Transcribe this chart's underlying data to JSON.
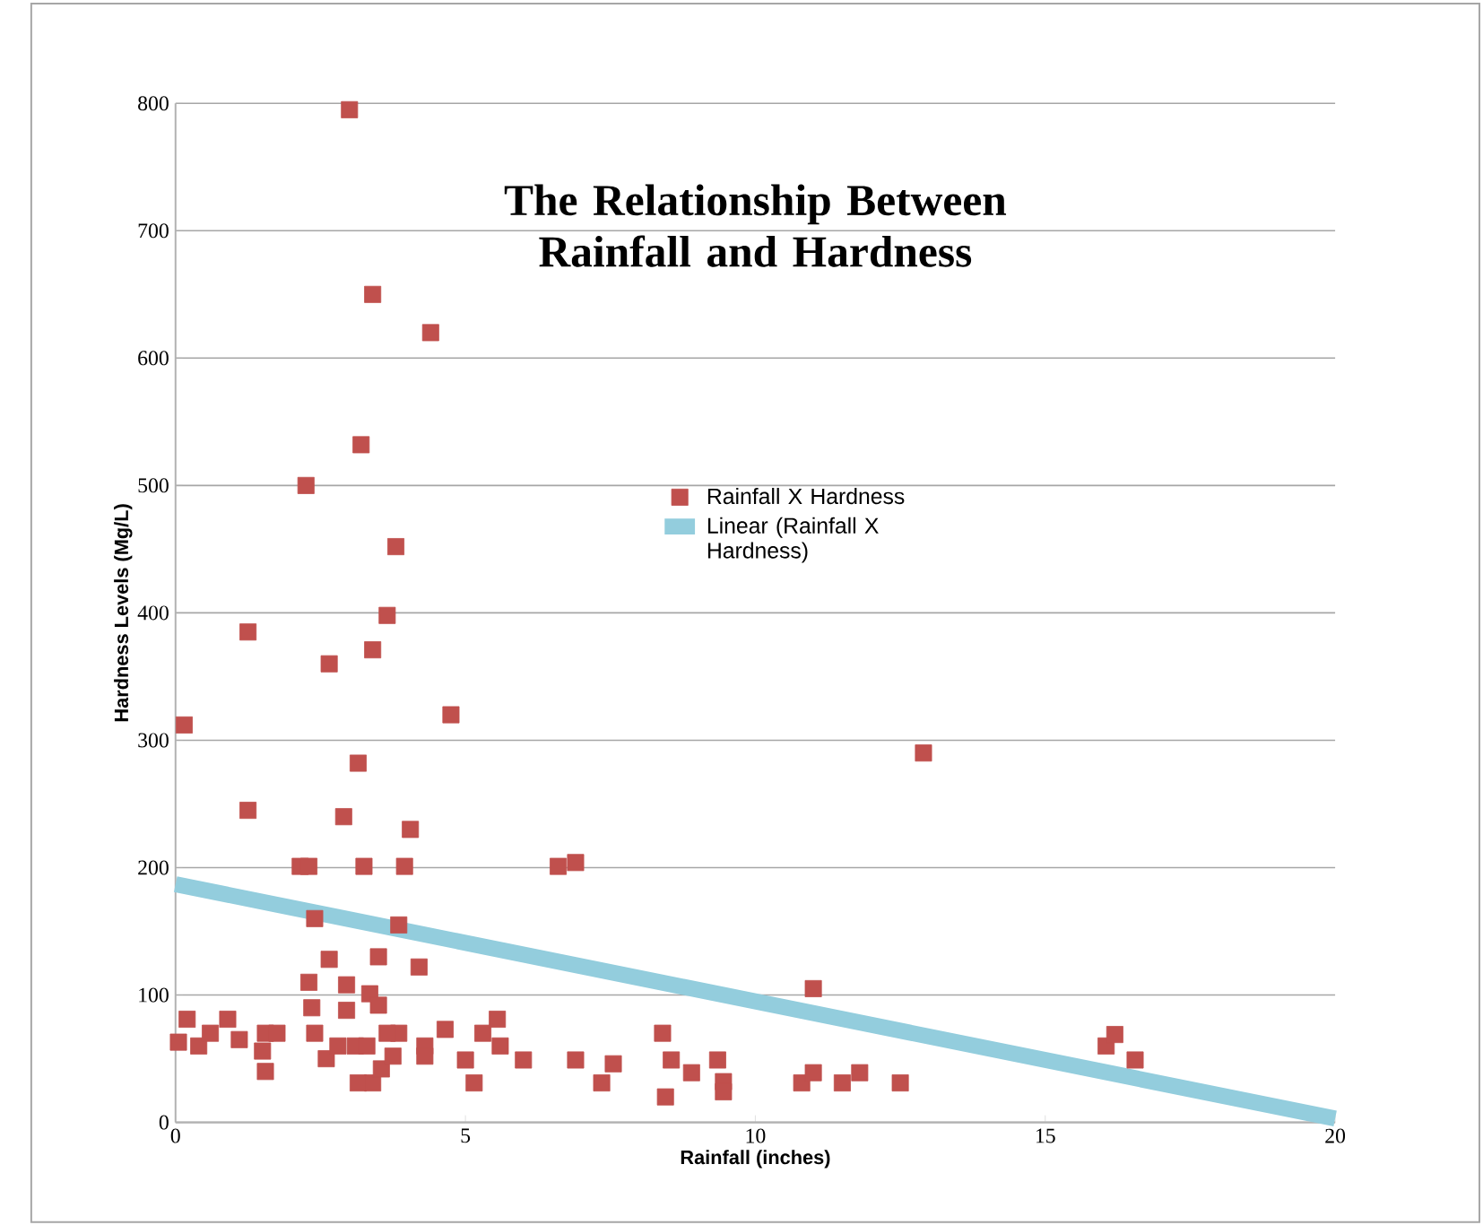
{
  "chart_data": {
    "type": "scatter",
    "title": "The Relationship Between Rainfall and Hardness",
    "xlabel": "Rainfall (inches)",
    "ylabel": "Hardness Levels (Mg/L)",
    "xlim": [
      0,
      20
    ],
    "xticks": [
      0,
      5,
      10,
      15,
      20
    ],
    "ylim": [
      0,
      800
    ],
    "yticks": [
      0,
      100,
      200,
      300,
      400,
      500,
      600,
      700,
      800
    ],
    "grid": "y",
    "legend": "center",
    "series": [
      {
        "name": "Rainfall X Hardness",
        "marker": "square",
        "color": "#c0504d",
        "x": [
          3.0,
          3.4,
          4.4,
          3.2,
          2.25,
          3.8,
          3.65,
          1.25,
          3.4,
          2.65,
          4.75,
          0.15,
          12.9,
          3.15,
          1.25,
          2.9,
          4.05,
          2.15,
          2.3,
          3.25,
          3.95,
          6.6,
          6.9,
          2.4,
          3.85,
          4.2,
          11.0,
          2.65,
          3.5,
          2.3,
          2.95,
          3.35,
          3.5,
          2.35,
          2.95,
          0.2,
          0.9,
          0.05,
          0.4,
          0.6,
          1.1,
          1.55,
          1.75,
          1.55,
          1.5,
          2.4,
          2.6,
          2.8,
          3.1,
          3.3,
          3.15,
          3.4,
          3.55,
          3.75,
          3.85,
          3.65,
          4.3,
          4.3,
          4.65,
          5.0,
          5.15,
          5.3,
          5.55,
          5.6,
          6.0,
          6.9,
          7.35,
          7.55,
          8.4,
          8.55,
          8.45,
          8.9,
          9.35,
          9.45,
          9.45,
          10.8,
          11.0,
          11.5,
          11.8,
          12.5,
          16.05,
          16.2,
          16.55
        ],
        "values": [
          795,
          650,
          620,
          532,
          500,
          452,
          398,
          385,
          371,
          360,
          320,
          312,
          290,
          282,
          245,
          240,
          230,
          201,
          201,
          201,
          201,
          201,
          204,
          160,
          155,
          122,
          105,
          128,
          130,
          110,
          108,
          101,
          92,
          90,
          88,
          81,
          81,
          63,
          60,
          70,
          65,
          70,
          70,
          40,
          56,
          70,
          50,
          60,
          60,
          60,
          31,
          31,
          42,
          52,
          70,
          70,
          60,
          52,
          73,
          49,
          31,
          70,
          81,
          60,
          49,
          49,
          31,
          46,
          70,
          49,
          20,
          39,
          49,
          32,
          24,
          31,
          39,
          31,
          39,
          31,
          60,
          69,
          49
        ]
      },
      {
        "name": "Linear (Rainfall X Hardness)",
        "type": "line",
        "color": "#93cddd",
        "x": [
          0,
          20
        ],
        "values": [
          187,
          3
        ]
      }
    ]
  }
}
